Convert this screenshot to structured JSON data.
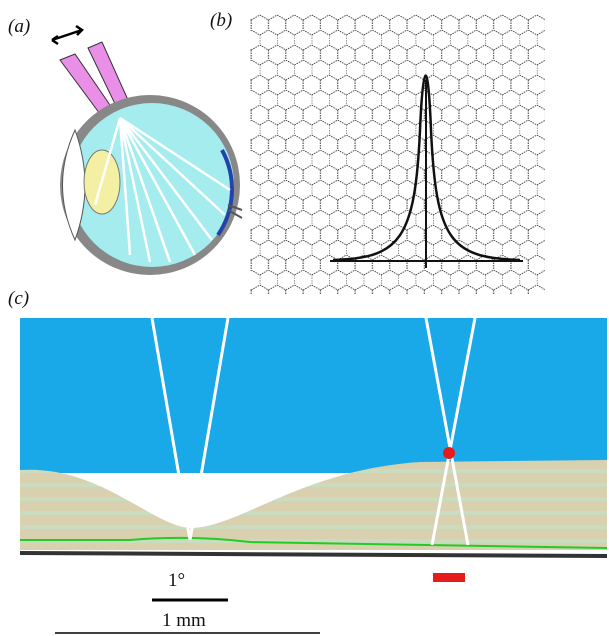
{
  "panels": [
    {
      "label": "(a)"
    },
    {
      "label": "(b)"
    },
    {
      "label": "(c)"
    }
  ],
  "scale_bars": [
    {
      "label": "1°"
    },
    {
      "label": "1 mm"
    }
  ]
}
